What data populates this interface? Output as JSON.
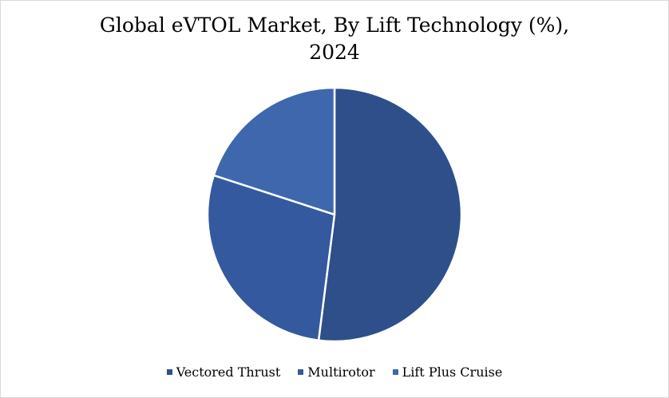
{
  "chart_data": {
    "type": "pie",
    "title": "Global eVTOL Market, By Lift Technology (%),",
    "subtitle": "2024",
    "categories": [
      "Vectored Thrust",
      "Multirotor",
      "Lift Plus Cruise"
    ],
    "values": [
      52,
      28,
      20
    ],
    "colors": [
      "#2e4f8a",
      "#34599f",
      "#3e67ad"
    ],
    "legend": "bottom"
  }
}
